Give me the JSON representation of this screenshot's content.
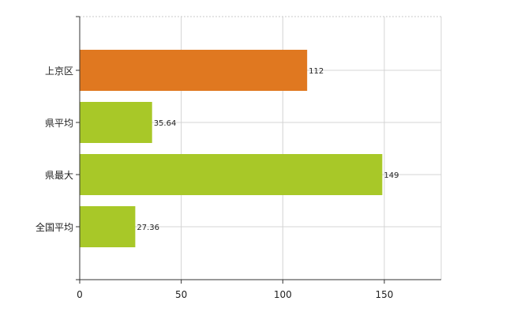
{
  "chart_data": {
    "type": "bar",
    "orientation": "horizontal",
    "categories": [
      "上京区",
      "県平均",
      "県最大",
      "全国平均"
    ],
    "values": [
      112,
      35.64,
      149,
      27.36
    ],
    "value_labels": [
      "112",
      "35.64",
      "149",
      "27.36"
    ],
    "bar_colors": [
      "#e07820",
      "#a8c828",
      "#a8c828",
      "#a8c828"
    ],
    "xlim": [
      0,
      178
    ],
    "x_ticks": [
      0,
      50,
      100,
      150
    ],
    "x_tick_labels": [
      "0",
      "50",
      "100",
      "150"
    ],
    "grid": true,
    "title": "",
    "xlabel": "",
    "ylabel": ""
  }
}
